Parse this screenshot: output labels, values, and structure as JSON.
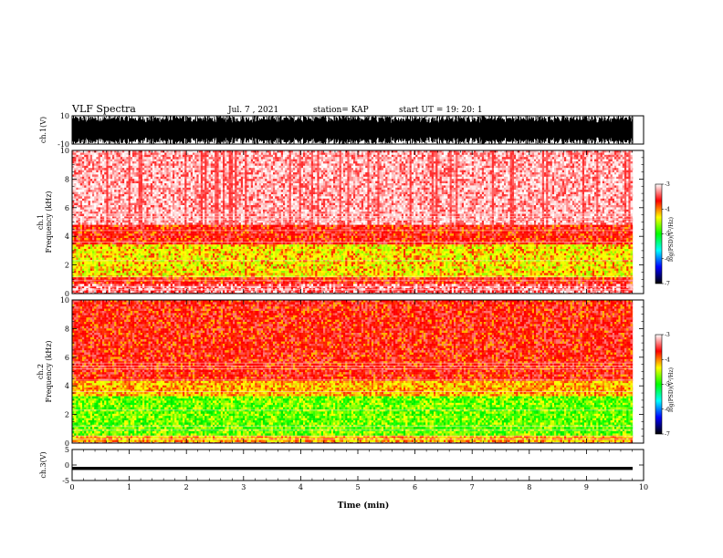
{
  "header": {
    "title": "VLF Spectra",
    "date": "Jul. 7 , 2021",
    "station": "station= KAP",
    "start_ut": "start UT =  19: 20: 1"
  },
  "chart_data": [
    {
      "type": "line",
      "panel": "ch1-waveform",
      "ylabel": "ch.1(V)",
      "ylim": [
        -10,
        10
      ],
      "yticks": [
        "10",
        "-10"
      ],
      "xlim": [
        0,
        10
      ],
      "color": "#000000"
    },
    {
      "type": "heatmap",
      "panel": "ch1-spectrogram",
      "ylabel_line1": "ch.1",
      "ylabel_line2": "Frequency (kHz)",
      "ylim": [
        0,
        10
      ],
      "yticks": [
        "0",
        "2",
        "4",
        "6",
        "8",
        "10"
      ],
      "xlim": [
        0,
        9.8
      ],
      "bands": [
        {
          "from": 0.0,
          "to": 0.6,
          "level": "high"
        },
        {
          "from": 0.6,
          "to": 1.2,
          "level": "red"
        },
        {
          "from": 1.2,
          "to": 3.4,
          "level": "yellow-green"
        },
        {
          "from": 3.4,
          "to": 4.8,
          "level": "red"
        },
        {
          "from": 4.8,
          "to": 10.0,
          "level": "pale"
        }
      ],
      "colorbar": {
        "label": "log(PSD)(V²/Hz)",
        "ticks": [
          "-3",
          "-4",
          "-5",
          "-6",
          "-7"
        ],
        "range": [
          -7,
          -3
        ],
        "colors": [
          "#ffffff",
          "#ff0000",
          "#ffff00",
          "#00ff00",
          "#00ffff",
          "#0000ff",
          "#000000"
        ]
      }
    },
    {
      "type": "heatmap",
      "panel": "ch2-spectrogram",
      "ylabel_line1": "ch.2",
      "ylabel_line2": "Frequency (kHz)",
      "ylim": [
        0,
        10
      ],
      "yticks": [
        "0",
        "2",
        "4",
        "6",
        "8",
        "10"
      ],
      "xlim": [
        0,
        9.8
      ],
      "bands": [
        {
          "from": 0.0,
          "to": 0.5,
          "level": "yellow"
        },
        {
          "from": 0.5,
          "to": 1.8,
          "level": "green"
        },
        {
          "from": 1.8,
          "to": 3.3,
          "level": "green"
        },
        {
          "from": 3.3,
          "to": 4.3,
          "level": "yellow"
        },
        {
          "from": 4.3,
          "to": 10.0,
          "level": "red"
        }
      ],
      "colorbar": {
        "label": "log(PSD)(V²/Hz)",
        "ticks": [
          "-3",
          "-4",
          "-5",
          "-6",
          "-7"
        ],
        "range": [
          -7,
          -3
        ],
        "colors": [
          "#ffffff",
          "#ff0000",
          "#ffff00",
          "#00ff00",
          "#00ffff",
          "#0000ff",
          "#000000"
        ]
      }
    },
    {
      "type": "line",
      "panel": "ch3-waveform",
      "ylabel": "ch.3(V)",
      "ylim": [
        -5,
        5
      ],
      "yticks": [
        "5",
        "0",
        "-5"
      ],
      "xlim": [
        0,
        10
      ],
      "xlabel": "Time (min)",
      "xticks": [
        "0",
        "1",
        "2",
        "3",
        "4",
        "5",
        "6",
        "7",
        "8",
        "9",
        "10"
      ],
      "color": "#000000"
    }
  ]
}
